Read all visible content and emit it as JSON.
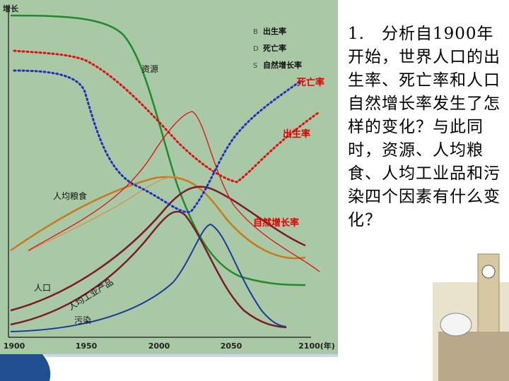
{
  "chart": {
    "y_axis_label": "增长",
    "x_ticks": [
      "1900",
      "1950",
      "2000",
      "2050",
      "2100(年)"
    ],
    "legend": [
      "出生率",
      "死亡率",
      "自然增长率"
    ],
    "curve_labels": {
      "resources": "资源",
      "food": "人均粮食",
      "population": "人口",
      "industry": "人均工业产品",
      "pollution": "污染"
    },
    "annotations": {
      "death_rate": "死亡率",
      "birth_rate": "出生率",
      "natural_growth": "自然增长率"
    }
  },
  "question": "1.　分析自1900年开始，世界人口的出生率、死亡率和人口自然增长率发生了怎样的变化？与此同时，资源、人均粮食、人均工业品和污染四个因素有什么变化？"
}
